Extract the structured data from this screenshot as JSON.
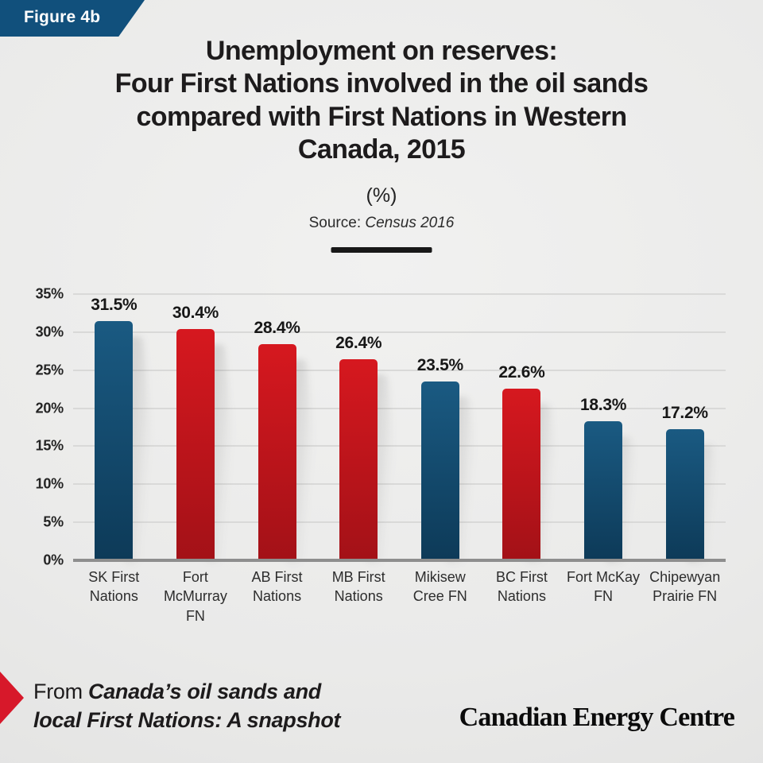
{
  "figure_label": "Figure 4b",
  "title_lines": [
    "Unemployment on reserves:",
    "Four First Nations involved in the oil sands",
    "compared with First Nations in Western",
    "Canada, 2015"
  ],
  "unit_label": "(%)",
  "source": {
    "prefix": "Source: ",
    "name": "Census 2016"
  },
  "footer": {
    "from_label": "From ",
    "publication_line1": "Canada’s oil sands and",
    "publication_line2": "local First Nations: A snapshot",
    "brand": "Canadian Energy Centre"
  },
  "colors": {
    "banner_blue": "#11507c",
    "arrow_red": "#d7182a",
    "background_gray": "#eaeae9",
    "grid_gray": "#d9d9d8",
    "baseline_gray": "#8e8e8e",
    "text_dark": "#1d1b1c",
    "bar_gradients": {
      "blue": [
        "#1a5a82",
        "#0d3a58"
      ],
      "red": [
        "#d6181f",
        "#a31117"
      ]
    }
  },
  "chart_data": {
    "type": "bar",
    "title": "Unemployment on reserves: Four First Nations involved in the oil sands compared with First Nations in Western Canada, 2015 (%)",
    "source": "Census 2016",
    "categories": [
      "SK First Nations",
      "Fort McMurray FN",
      "AB First Nations",
      "MB First Nations",
      "Mikisew Cree FN",
      "BC First Nations",
      "Fort McKay FN",
      "Chipewyan Prairie FN"
    ],
    "values": [
      31.5,
      30.4,
      28.4,
      26.4,
      23.5,
      22.6,
      18.3,
      17.2
    ],
    "value_labels": [
      "31.5%",
      "30.4%",
      "28.4%",
      "26.4%",
      "23.5%",
      "22.6%",
      "18.3%",
      "17.2%"
    ],
    "bar_colors": [
      "blue",
      "red",
      "red",
      "red",
      "blue",
      "red",
      "blue",
      "blue"
    ],
    "xlabel": "",
    "ylabel": "(%)",
    "ylim": [
      0,
      35
    ],
    "ytick_step": 5,
    "yticks_top_to_bottom": [
      "35%",
      "30%",
      "25%",
      "20%",
      "15%",
      "10%",
      "5%",
      "0%"
    ],
    "grid": true,
    "legend": "none"
  }
}
